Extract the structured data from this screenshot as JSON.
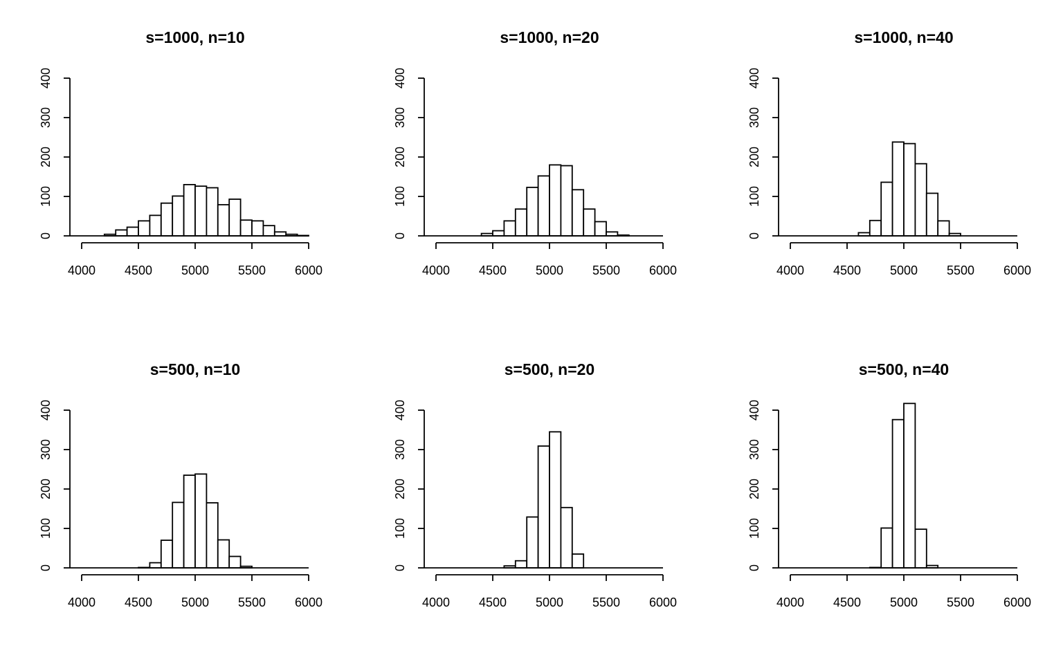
{
  "chart_data": [
    {
      "type": "bar",
      "title": "s=1000, n=10",
      "xlabel": "",
      "ylabel": "",
      "xlim": [
        4000,
        6000
      ],
      "ylim": [
        0,
        400
      ],
      "xticks": [
        "4000",
        "4500",
        "5000",
        "5500",
        "6000"
      ],
      "yticks": [
        "0",
        "100",
        "200",
        "300",
        "400"
      ],
      "bin_width": 100,
      "bins": [
        {
          "x0": 4200,
          "count": 4
        },
        {
          "x0": 4300,
          "count": 15
        },
        {
          "x0": 4400,
          "count": 22
        },
        {
          "x0": 4500,
          "count": 38
        },
        {
          "x0": 4600,
          "count": 52
        },
        {
          "x0": 4700,
          "count": 83
        },
        {
          "x0": 4800,
          "count": 101
        },
        {
          "x0": 4900,
          "count": 130
        },
        {
          "x0": 5000,
          "count": 126
        },
        {
          "x0": 5100,
          "count": 122
        },
        {
          "x0": 5200,
          "count": 79
        },
        {
          "x0": 5300,
          "count": 93
        },
        {
          "x0": 5400,
          "count": 40
        },
        {
          "x0": 5500,
          "count": 38
        },
        {
          "x0": 5600,
          "count": 26
        },
        {
          "x0": 5700,
          "count": 10
        },
        {
          "x0": 5800,
          "count": 4
        },
        {
          "x0": 5900,
          "count": 1
        }
      ]
    },
    {
      "type": "bar",
      "title": "s=1000, n=20",
      "xlabel": "",
      "ylabel": "",
      "xlim": [
        4000,
        6000
      ],
      "ylim": [
        0,
        400
      ],
      "xticks": [
        "4000",
        "4500",
        "5000",
        "5500",
        "6000"
      ],
      "yticks": [
        "0",
        "100",
        "200",
        "300",
        "400"
      ],
      "bin_width": 100,
      "bins": [
        {
          "x0": 4400,
          "count": 6
        },
        {
          "x0": 4500,
          "count": 13
        },
        {
          "x0": 4600,
          "count": 38
        },
        {
          "x0": 4700,
          "count": 68
        },
        {
          "x0": 4800,
          "count": 123
        },
        {
          "x0": 4900,
          "count": 152
        },
        {
          "x0": 5000,
          "count": 180
        },
        {
          "x0": 5100,
          "count": 178
        },
        {
          "x0": 5200,
          "count": 117
        },
        {
          "x0": 5300,
          "count": 68
        },
        {
          "x0": 5400,
          "count": 36
        },
        {
          "x0": 5500,
          "count": 10
        },
        {
          "x0": 5600,
          "count": 2
        }
      ]
    },
    {
      "type": "bar",
      "title": "s=1000, n=40",
      "xlabel": "",
      "ylabel": "",
      "xlim": [
        4000,
        6000
      ],
      "ylim": [
        0,
        400
      ],
      "xticks": [
        "4000",
        "4500",
        "5000",
        "5500",
        "6000"
      ],
      "yticks": [
        "0",
        "100",
        "200",
        "300",
        "400"
      ],
      "bin_width": 100,
      "bins": [
        {
          "x0": 4600,
          "count": 8
        },
        {
          "x0": 4700,
          "count": 39
        },
        {
          "x0": 4800,
          "count": 136
        },
        {
          "x0": 4900,
          "count": 238
        },
        {
          "x0": 5000,
          "count": 234
        },
        {
          "x0": 5100,
          "count": 183
        },
        {
          "x0": 5200,
          "count": 108
        },
        {
          "x0": 5300,
          "count": 38
        },
        {
          "x0": 5400,
          "count": 6
        }
      ]
    },
    {
      "type": "bar",
      "title": "s=500, n=10",
      "xlabel": "",
      "ylabel": "",
      "xlim": [
        4000,
        6000
      ],
      "ylim": [
        0,
        400
      ],
      "xticks": [
        "4000",
        "4500",
        "5000",
        "5500",
        "6000"
      ],
      "yticks": [
        "0",
        "100",
        "200",
        "300",
        "400"
      ],
      "bin_width": 100,
      "bins": [
        {
          "x0": 4500,
          "count": 1
        },
        {
          "x0": 4600,
          "count": 13
        },
        {
          "x0": 4700,
          "count": 70
        },
        {
          "x0": 4800,
          "count": 166
        },
        {
          "x0": 4900,
          "count": 235
        },
        {
          "x0": 5000,
          "count": 238
        },
        {
          "x0": 5100,
          "count": 165
        },
        {
          "x0": 5200,
          "count": 71
        },
        {
          "x0": 5300,
          "count": 29
        },
        {
          "x0": 5400,
          "count": 4
        }
      ]
    },
    {
      "type": "bar",
      "title": "s=500, n=20",
      "xlabel": "",
      "ylabel": "",
      "xlim": [
        4000,
        6000
      ],
      "ylim": [
        0,
        400
      ],
      "xticks": [
        "4000",
        "4500",
        "5000",
        "5500",
        "6000"
      ],
      "yticks": [
        "0",
        "100",
        "200",
        "300",
        "400"
      ],
      "bin_width": 100,
      "bins": [
        {
          "x0": 4600,
          "count": 5
        },
        {
          "x0": 4700,
          "count": 18
        },
        {
          "x0": 4800,
          "count": 129
        },
        {
          "x0": 4900,
          "count": 309
        },
        {
          "x0": 5000,
          "count": 345
        },
        {
          "x0": 5100,
          "count": 153
        },
        {
          "x0": 5200,
          "count": 35
        }
      ]
    },
    {
      "type": "bar",
      "title": "s=500, n=40",
      "xlabel": "",
      "ylabel": "",
      "xlim": [
        4000,
        6000
      ],
      "ylim": [
        0,
        400
      ],
      "xticks": [
        "4000",
        "4500",
        "5000",
        "5500",
        "6000"
      ],
      "yticks": [
        "0",
        "100",
        "200",
        "300",
        "400"
      ],
      "bin_width": 100,
      "bins": [
        {
          "x0": 4700,
          "count": 1
        },
        {
          "x0": 4800,
          "count": 101
        },
        {
          "x0": 4900,
          "count": 376
        },
        {
          "x0": 5000,
          "count": 417
        },
        {
          "x0": 5100,
          "count": 98
        },
        {
          "x0": 5200,
          "count": 6
        }
      ]
    }
  ]
}
